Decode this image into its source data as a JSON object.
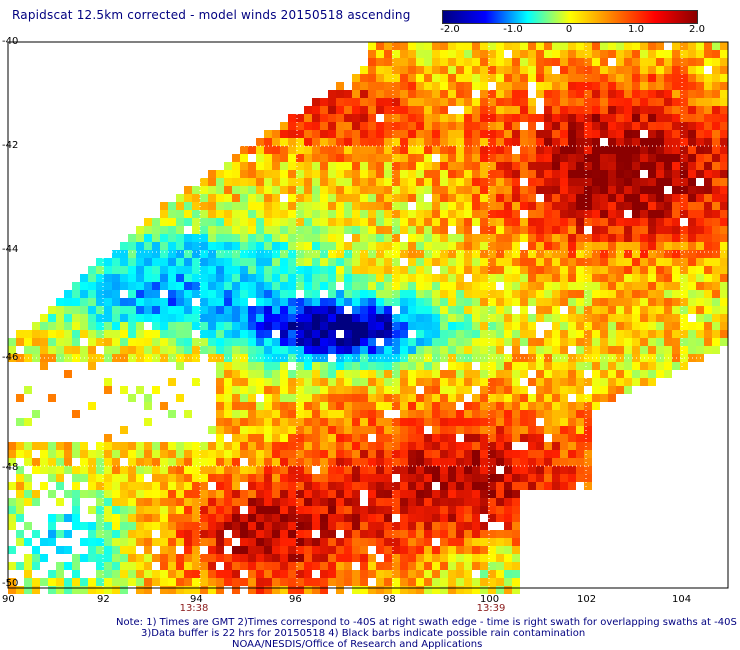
{
  "title": "Rapidscat 12.5km corrected - model winds 20150518 ascending",
  "colorbar": {
    "labels": [
      "-2.0",
      "-1.0",
      "0",
      "1.0",
      "2.0"
    ],
    "colors": [
      "#000080",
      "#0000ff",
      "#00ffff",
      "#ffff00",
      "#ff8000",
      "#ff0000",
      "#8b0000"
    ]
  },
  "axes": {
    "x_ticks": [
      "90",
      "92",
      "94",
      "96",
      "98",
      "100",
      "102",
      "104"
    ],
    "y_ticks": [
      "-40",
      "-42",
      "-44",
      "-46",
      "-48",
      "-50"
    ],
    "grid": true
  },
  "times": [
    "13:38",
    "13:39"
  ],
  "note": {
    "line1": "Note: 1) Times are GMT 2)Times correspond to -40S at right swath edge - time is right swath for overlapping swaths at -40S",
    "line2": "3)Data buffer is 22 hrs for 20150518 4) Black barbs indicate possible rain contamination",
    "line3": "NOAA/NESDIS/Office of Research and Applications"
  },
  "map_data": {
    "type": "heatmap",
    "xlim": [
      90,
      105
    ],
    "ylim": [
      -50,
      -40
    ],
    "value_range": [
      -2.0,
      2.0
    ]
  }
}
